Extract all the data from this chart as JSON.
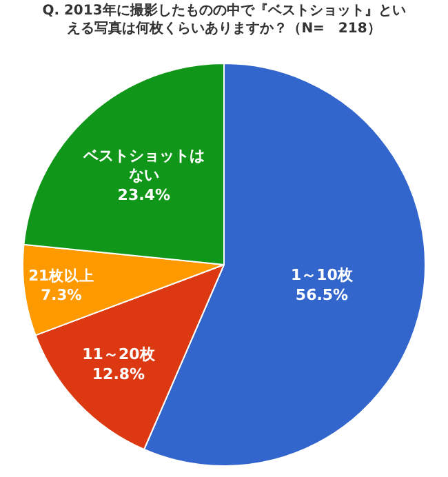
{
  "chart_data": {
    "type": "pie",
    "title": "Q. 2013年に撮影したものの中で『ベストショット』といえる写真は何枚くらいありますか？（N=　218）",
    "categories": [
      "1～10枚",
      "11～20枚",
      "21枚以上",
      "ベストショットはない"
    ],
    "values": [
      56.5,
      12.8,
      7.3,
      23.4
    ],
    "colors": [
      "#3366cc",
      "#dc3912",
      "#ff9900",
      "#109618"
    ],
    "value_labels": [
      "56.5%",
      "12.8%",
      "7.3%",
      "23.4%"
    ],
    "legend": false
  }
}
